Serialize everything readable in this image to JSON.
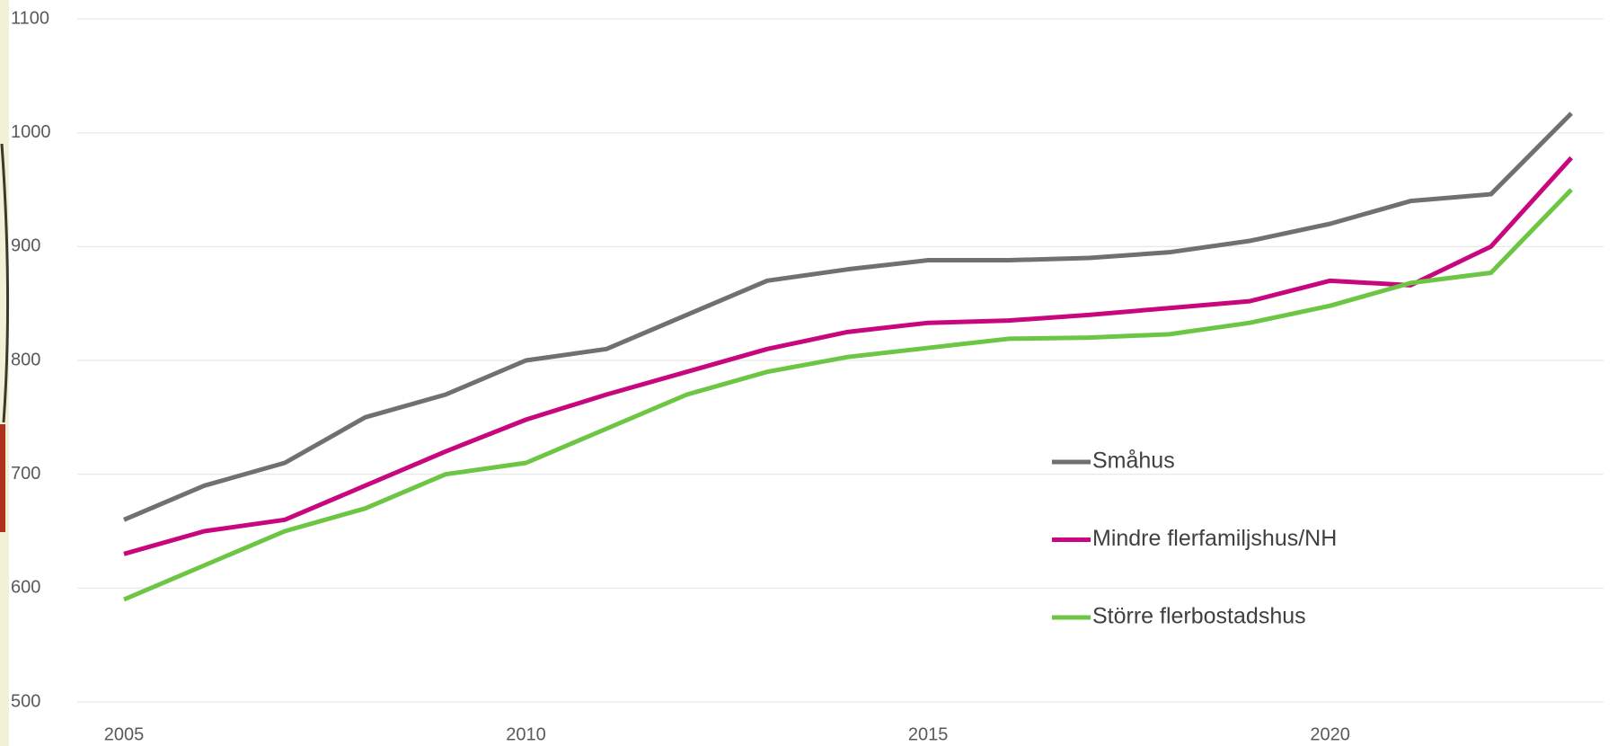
{
  "chart_data": {
    "type": "line",
    "x": [
      2005,
      2006,
      2007,
      2008,
      2009,
      2010,
      2011,
      2012,
      2013,
      2014,
      2015,
      2016,
      2017,
      2018,
      2019,
      2020,
      2021,
      2022,
      2023
    ],
    "series": [
      {
        "name": "Småhus",
        "color": "#707070",
        "values": [
          660,
          690,
          710,
          750,
          770,
          800,
          810,
          840,
          870,
          880,
          888,
          888,
          890,
          895,
          905,
          920,
          940,
          946,
          1017
        ]
      },
      {
        "name": "Mindre flerfamiljshus/NH",
        "color": "#c8077e",
        "values": [
          630,
          650,
          660,
          690,
          720,
          748,
          770,
          790,
          810,
          825,
          833,
          835,
          840,
          846,
          852,
          870,
          866,
          900,
          978
        ]
      },
      {
        "name": "Större flerbostadshus",
        "color": "#6cc644",
        "values": [
          590,
          620,
          650,
          670,
          700,
          710,
          740,
          770,
          790,
          803,
          811,
          819,
          820,
          823,
          833,
          848,
          868,
          877,
          950
        ]
      }
    ],
    "xlim": [
      2005,
      2023.4
    ],
    "xticks": [
      2005,
      2010,
      2015,
      2020
    ],
    "ylim": [
      500,
      1100
    ],
    "yticks": [
      500,
      600,
      700,
      800,
      900,
      1000,
      1100
    ],
    "grid": true
  }
}
